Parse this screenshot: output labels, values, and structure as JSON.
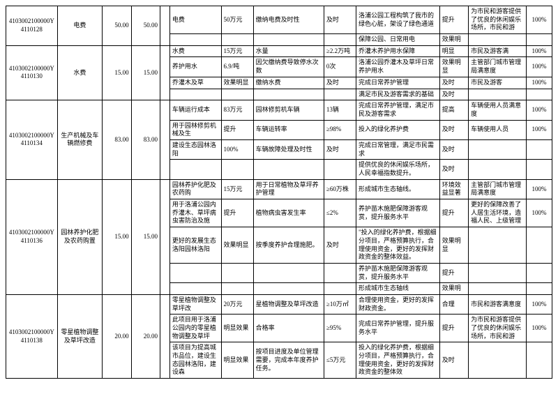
{
  "rows": [
    {
      "id": "4103002100000Y4110128",
      "name": "电费",
      "a1": "50.00",
      "a2": "50.00",
      "sub": [
        {
          "c6": "电费",
          "c7": "50万元",
          "c8": "缴纳电费及时性",
          "c9": "及时",
          "c10": "洛浦公园工程构筑了我市的绿色心脏，架设了绿色通道",
          "c11": "提升",
          "c12": "为市民和游客提供了优良的休闲娱乐场所，市民和游",
          "c13": "100%"
        },
        {
          "c6": "",
          "c7": "",
          "c8": "",
          "c9": "",
          "c10": "保障公园、日常用电",
          "c11": "效果明",
          "c12": "",
          "c13": ""
        }
      ]
    },
    {
      "id": "4103002100000Y4110130",
      "name": "水费",
      "a1": "15.00",
      "a2": "15.00",
      "sub": [
        {
          "c6": "水费",
          "c7": "15万元",
          "c8": "水量",
          "c9": "≥2.2万吨",
          "c10": "乔灌木养护用水保障",
          "c11": "明显",
          "c12": "市民及游客满",
          "c13": "100%"
        },
        {
          "c6": "养护用水",
          "c7": "6.9/吨",
          "c8": "因欠缴纳费导致停水次数",
          "c9": "0次",
          "c10": "洛浦公园乔灌木及草坪日常养护用水",
          "c11": "效果明显",
          "c12": "主管部门城市管理局满意度",
          "c13": "100%"
        },
        {
          "c6": "乔灌木及草",
          "c7": "效果明显",
          "c8": "缴纳水费",
          "c9": "及时",
          "c10": "完成日常养护管理",
          "c11": "及时",
          "c12": "市民及游客",
          "c13": "100%"
        },
        {
          "c6": "",
          "c7": "",
          "c8": "",
          "c9": "",
          "c10": "满足市民及游客需求的基础",
          "c11": "及时",
          "c12": "",
          "c13": ""
        }
      ]
    },
    {
      "id": "4103002100000Y4110134",
      "name": "生产机械及车辆燃修费",
      "a1": "83.00",
      "a2": "83.00",
      "sub": [
        {
          "c6": "车辆运行成本",
          "c7": "83万元",
          "c8": "园林修剪机车辆",
          "c9": "13辆",
          "c10": "完成日常养护管理，满足市民及游客需求",
          "c11": "提高",
          "c12": "车辆使用人员满意度",
          "c13": "100%"
        },
        {
          "c6": "用于园林修剪机械及生",
          "c7": "提升",
          "c8": "车辆运转率",
          "c9": "≥98%",
          "c10": "投入的绿化养护费",
          "c11": "及时",
          "c12": "车辆使用人员",
          "c13": "100%"
        },
        {
          "c6": "建设生态园林洛阳",
          "c7": "100%",
          "c8": "车辆故障处理及时性",
          "c9": "及时",
          "c10": "完成日常管理，满足市民需求",
          "c11": "及时",
          "c12": "",
          "c13": ""
        },
        {
          "c6": "",
          "c7": "",
          "c8": "",
          "c9": "",
          "c10": "提供优良的休闲娱乐场所，人民幸福指数提升。",
          "c11": "及时",
          "c12": "",
          "c13": ""
        }
      ]
    },
    {
      "id": "4103002100000Y4110136",
      "name": "园林养护化肥及农药购置",
      "a1": "15.00",
      "a2": "15.00",
      "sub": [
        {
          "c6": "园林养护化肥及农药购",
          "c7": "15万元",
          "c8": "用于日常植物及草坪养护管理",
          "c9": "≥60万株",
          "c10": "形成城市生态轴线。",
          "c11": "环境效益显著",
          "c12": "主管部门城市管理局满意度",
          "c13": "100%"
        },
        {
          "c6": "用于洛浦公园内乔灌木、草坪病虫害防治及施",
          "c7": "提升",
          "c8": "植物病虫害发生率",
          "c9": "≤2%",
          "c10": "养护苗木施肥保障游客观赏，提升服务水平",
          "c11": "提升",
          "c12": "更好的保障改善了人居生活环境，造福人民、上级管理",
          "c13": "100%"
        },
        {
          "c6": "更好的发展生态洛阳园林洛阳",
          "c7": "效果明显",
          "c8": "按季度养护合理施肥。",
          "c9": "及时",
          "c10": "\"投入的绿化养护费，根据细分项目，严格预算执行，合理使用资金，更好的发挥财政资金的整体效益。",
          "c11": "效果明显",
          "c12": "",
          "c13": ""
        },
        {
          "c6": "",
          "c7": "",
          "c8": "",
          "c9": "",
          "c10": "养护苗木施肥保障游客观赏，提升服务水平",
          "c11": "提升",
          "c12": "",
          "c13": ""
        },
        {
          "c6": "",
          "c7": "",
          "c8": "",
          "c9": "",
          "c10": "形成城市生态轴线",
          "c11": "效果明",
          "c12": "",
          "c13": ""
        }
      ]
    },
    {
      "id": "4103002100000Y4110138",
      "name": "零星植物调整及草坪改造",
      "a1": "20.00",
      "a2": "20.00",
      "sub": [
        {
          "c6": "零星植物调整及草坪改",
          "c7": "20万元",
          "c8": "星植物调整及草坪改造",
          "c9": "≥10万㎡",
          "c10": "合理使用资金，更好的发挥财政资金。",
          "c11": "合理",
          "c12": "市民和游客满意度",
          "c13": "100%"
        },
        {
          "c6": "此项目用于洛浦公园内的零星植物调整及草坪",
          "c7": "明显效果",
          "c8": "合格率",
          "c9": "≥95%",
          "c10": "完成日常养护管理，提升服务水平",
          "c11": "提升",
          "c12": "为市民和游客提供了优良的休闲娱乐场所，市民和游",
          "c13": "100%"
        },
        {
          "c6": "该项目为提高城市品位，建设生态园林洛阳，建设森",
          "c7": "明显效果",
          "c8": "按项目进度及单位管理需要，完成本年度养护任务。",
          "c9": "≤5万元",
          "c10": "投入的绿化养护费，根据细分项目，严格预算执行，合理使用资金，更好的发挥财政资金的整体效",
          "c11": "及时",
          "c12": "",
          "c13": ""
        }
      ]
    }
  ]
}
